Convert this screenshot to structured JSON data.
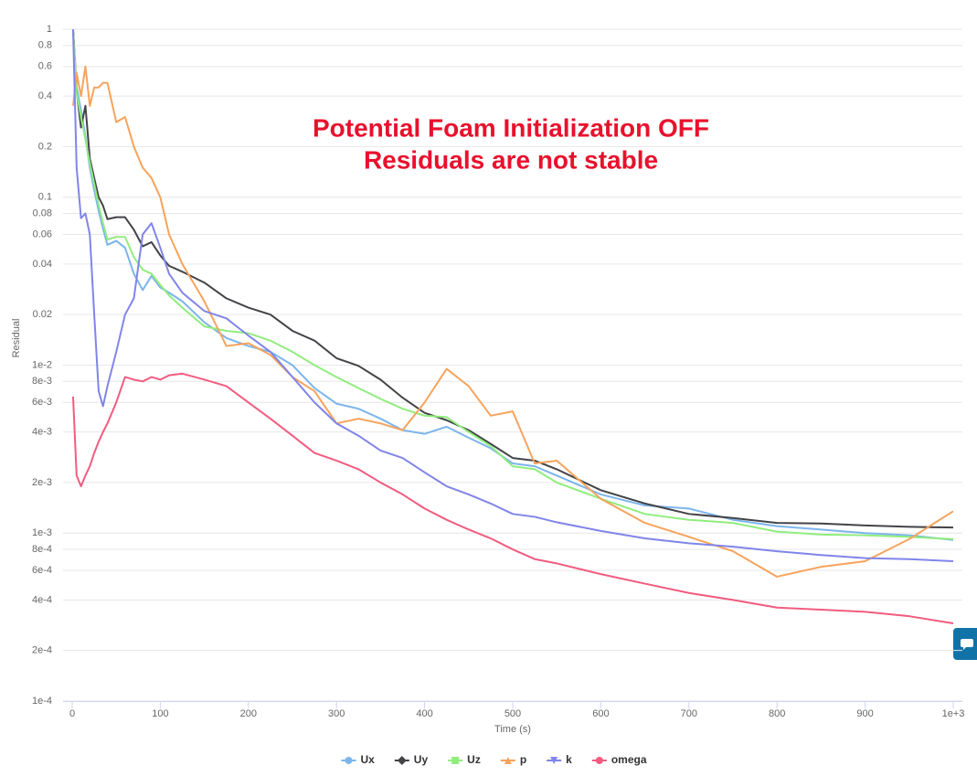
{
  "chart_data": {
    "type": "line",
    "annotations": [
      "Potential Foam Initialization OFF",
      "Residuals are not stable"
    ],
    "annotation_color": "#e8112d",
    "xlabel": "Time (s)",
    "ylabel": "Residual",
    "yscale": "log",
    "grid": true,
    "legend": "bottom",
    "xlim": [
      0,
      1000
    ],
    "ylim": [
      0.0001,
      1
    ],
    "xticks": [
      0,
      100,
      200,
      300,
      400,
      500,
      600,
      700,
      800,
      900,
      {
        "value": 1000,
        "label": "1e+3"
      }
    ],
    "yticks": [
      1,
      0.8,
      0.6,
      0.4,
      0.2,
      0.1,
      0.08,
      0.06,
      0.04,
      0.02,
      {
        "value": 0.01,
        "label": "1e-2"
      },
      {
        "value": 0.008,
        "label": "8e-3"
      },
      {
        "value": 0.006,
        "label": "6e-3"
      },
      {
        "value": 0.004,
        "label": "4e-3"
      },
      {
        "value": 0.002,
        "label": "2e-3"
      },
      {
        "value": 0.001,
        "label": "1e-3"
      },
      {
        "value": 0.0008,
        "label": "8e-4"
      },
      {
        "value": 0.0006,
        "label": "6e-4"
      },
      {
        "value": 0.0004,
        "label": "4e-4"
      },
      {
        "value": 0.0002,
        "label": "2e-4"
      },
      {
        "value": 0.0001,
        "label": "1e-4"
      }
    ],
    "x": [
      1,
      5,
      10,
      15,
      20,
      25,
      30,
      35,
      40,
      50,
      60,
      70,
      80,
      90,
      100,
      110,
      125,
      150,
      175,
      200,
      225,
      250,
      275,
      300,
      325,
      350,
      375,
      400,
      425,
      450,
      475,
      500,
      525,
      550,
      600,
      650,
      700,
      750,
      800,
      850,
      900,
      950,
      1000
    ],
    "series": [
      {
        "name": "Ux",
        "color": "#7cb5ec",
        "marker": "circle",
        "values": [
          1,
          0.45,
          0.33,
          0.23,
          0.15,
          0.11,
          0.083,
          0.065,
          0.052,
          0.055,
          0.05,
          0.035,
          0.028,
          0.034,
          0.029,
          0.027,
          0.024,
          0.018,
          0.0145,
          0.013,
          0.012,
          0.01,
          0.0073,
          0.0059,
          0.0055,
          0.0048,
          0.0041,
          0.0039,
          0.0043,
          0.0037,
          0.0032,
          0.0026,
          0.0025,
          0.0022,
          0.0017,
          0.00146,
          0.0014,
          0.0012,
          0.0011,
          0.00105,
          0.001,
          0.00097,
          0.00091
        ]
      },
      {
        "name": "Uy",
        "color": "#434348",
        "marker": "diamond",
        "values": [
          1,
          0.43,
          0.26,
          0.35,
          0.17,
          0.13,
          0.1,
          0.089,
          0.074,
          0.076,
          0.076,
          0.064,
          0.051,
          0.054,
          0.045,
          0.039,
          0.036,
          0.031,
          0.025,
          0.022,
          0.02,
          0.016,
          0.014,
          0.011,
          0.0099,
          0.0082,
          0.0064,
          0.0052,
          0.0047,
          0.0041,
          0.0034,
          0.0028,
          0.0027,
          0.0024,
          0.0018,
          0.0015,
          0.0013,
          0.00123,
          0.00115,
          0.00114,
          0.00111,
          0.00109,
          0.00108
        ]
      },
      {
        "name": "Uz",
        "color": "#90ed7d",
        "marker": "square",
        "values": [
          1,
          0.42,
          0.3,
          0.22,
          0.16,
          0.12,
          0.09,
          0.07,
          0.056,
          0.058,
          0.058,
          0.044,
          0.037,
          0.035,
          0.03,
          0.026,
          0.022,
          0.017,
          0.016,
          0.0155,
          0.014,
          0.012,
          0.01,
          0.0085,
          0.0073,
          0.0063,
          0.0055,
          0.005,
          0.0049,
          0.004,
          0.0033,
          0.0025,
          0.0024,
          0.002,
          0.0016,
          0.0013,
          0.0012,
          0.00115,
          0.00102,
          0.00098,
          0.00097,
          0.00095,
          0.00092
        ]
      },
      {
        "name": "p",
        "color": "#f7a35c",
        "marker": "triangle",
        "values": [
          0.35,
          0.55,
          0.4,
          0.6,
          0.35,
          0.45,
          0.45,
          0.48,
          0.48,
          0.28,
          0.3,
          0.2,
          0.15,
          0.13,
          0.1,
          0.06,
          0.04,
          0.024,
          0.013,
          0.0135,
          0.0115,
          0.0085,
          0.007,
          0.0045,
          0.0048,
          0.0045,
          0.0041,
          0.006,
          0.0095,
          0.0075,
          0.005,
          0.0053,
          0.0026,
          0.0027,
          0.0016,
          0.00115,
          0.00095,
          0.00078,
          0.00055,
          0.00063,
          0.00068,
          0.00092,
          0.00135
        ]
      },
      {
        "name": "k",
        "color": "#8085e9",
        "marker": "triangle-down",
        "values": [
          1,
          0.15,
          0.075,
          0.08,
          0.06,
          0.02,
          0.007,
          0.0057,
          0.0075,
          0.012,
          0.02,
          0.025,
          0.06,
          0.07,
          0.05,
          0.035,
          0.027,
          0.021,
          0.019,
          0.015,
          0.012,
          0.0085,
          0.006,
          0.0045,
          0.0038,
          0.0031,
          0.0028,
          0.0023,
          0.0019,
          0.0017,
          0.0015,
          0.0013,
          0.00125,
          0.00116,
          0.00103,
          0.00093,
          0.00087,
          0.00083,
          0.00078,
          0.00074,
          0.00071,
          0.0007,
          0.00068
        ]
      },
      {
        "name": "omega",
        "color": "#f15c80",
        "marker": "circle",
        "values": [
          0.0065,
          0.0022,
          0.0019,
          0.0022,
          0.0025,
          0.003,
          0.0035,
          0.004,
          0.0045,
          0.006,
          0.0085,
          0.0082,
          0.008,
          0.0085,
          0.0082,
          0.0087,
          0.0089,
          0.0082,
          0.0075,
          0.006,
          0.0048,
          0.0038,
          0.003,
          0.0027,
          0.0024,
          0.002,
          0.0017,
          0.0014,
          0.0012,
          0.00105,
          0.00093,
          0.0008,
          0.0007,
          0.00066,
          0.00057,
          0.0005,
          0.00044,
          0.0004,
          0.00036,
          0.00035,
          0.00034,
          0.00032,
          0.00029
        ]
      }
    ]
  }
}
